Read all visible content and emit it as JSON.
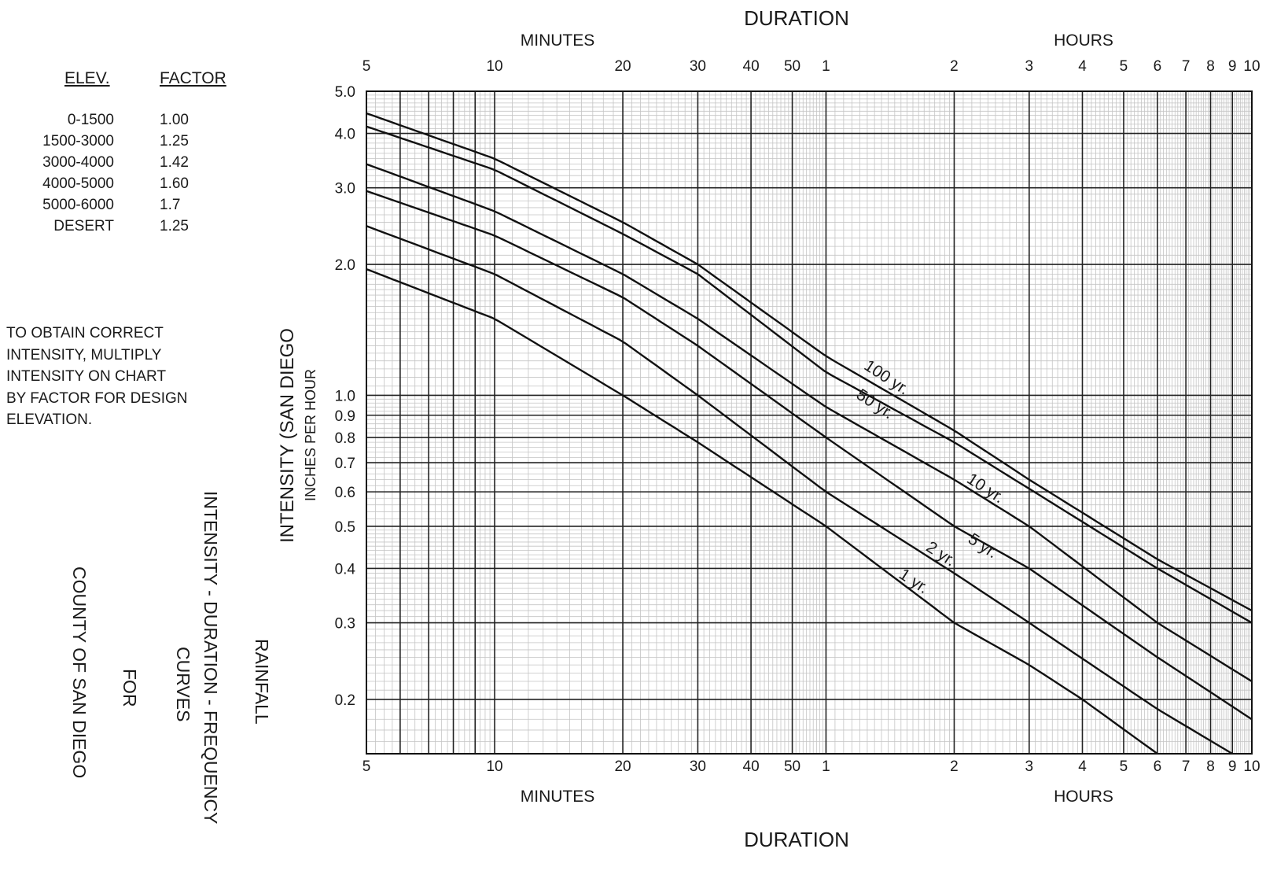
{
  "elevation_table": {
    "header_elev": "ELEV.",
    "header_factor": "FACTOR",
    "rows": [
      {
        "elev": "0-1500",
        "factor": "1.00"
      },
      {
        "elev": "1500-3000",
        "factor": "1.25"
      },
      {
        "elev": "3000-4000",
        "factor": "1.42"
      },
      {
        "elev": "4000-5000",
        "factor": "1.60"
      },
      {
        "elev": "5000-6000",
        "factor": "1.7"
      },
      {
        "elev": "DESERT",
        "factor": "1.25"
      }
    ]
  },
  "note": {
    "lines": [
      "TO OBTAIN CORRECT",
      "INTENSITY, MULTIPLY",
      "INTENSITY ON CHART",
      "BY FACTOR FOR DESIGN",
      "ELEVATION."
    ]
  },
  "side_title": {
    "lines": [
      "RAINFALL",
      "INTENSITY - DURATION - FREQUENCY",
      "CURVES",
      "FOR",
      "COUNTY OF SAN DIEGO"
    ]
  },
  "chart_data": {
    "type": "line",
    "x_scale": "log",
    "y_scale": "log",
    "x_unit": "minutes",
    "xlim": [
      5,
      600
    ],
    "ylim": [
      0.15,
      5.0
    ],
    "grid": true,
    "title_top": "DURATION",
    "title_bottom": "DURATION",
    "x_group_minutes": "MINUTES",
    "x_group_hours": "HOURS",
    "ylabel": "INTENSITY (SAN DIEGO",
    "ylabel_sub": "INCHES PER HOUR",
    "x_ticks": [
      {
        "value": 5,
        "label": "5"
      },
      {
        "value": 10,
        "label": "10"
      },
      {
        "value": 20,
        "label": "20"
      },
      {
        "value": 30,
        "label": "30"
      },
      {
        "value": 40,
        "label": "40"
      },
      {
        "value": 50,
        "label": "50"
      },
      {
        "value": 60,
        "label": "1"
      },
      {
        "value": 120,
        "label": "2"
      },
      {
        "value": 180,
        "label": "3"
      },
      {
        "value": 240,
        "label": "4"
      },
      {
        "value": 300,
        "label": "5"
      },
      {
        "value": 360,
        "label": "6"
      },
      {
        "value": 420,
        "label": "7"
      },
      {
        "value": 480,
        "label": "8"
      },
      {
        "value": 540,
        "label": "9"
      },
      {
        "value": 600,
        "label": "10"
      }
    ],
    "x_major_lines": [
      5,
      6,
      7,
      8,
      9,
      10,
      20,
      30,
      40,
      50,
      60,
      120,
      180,
      240,
      300,
      360,
      420,
      480,
      540,
      600
    ],
    "y_ticks": [
      {
        "value": 5.0,
        "label": "5.0"
      },
      {
        "value": 4.0,
        "label": "4.0"
      },
      {
        "value": 3.0,
        "label": "3.0"
      },
      {
        "value": 2.0,
        "label": "2.0"
      },
      {
        "value": 1.0,
        "label": "1.0"
      },
      {
        "value": 0.9,
        "label": "0.9"
      },
      {
        "value": 0.8,
        "label": "0.8"
      },
      {
        "value": 0.7,
        "label": "0.7"
      },
      {
        "value": 0.6,
        "label": "0.6"
      },
      {
        "value": 0.5,
        "label": "0.5"
      },
      {
        "value": 0.4,
        "label": "0.4"
      },
      {
        "value": 0.3,
        "label": "0.3"
      },
      {
        "value": 0.2,
        "label": "0.2"
      }
    ],
    "series": [
      {
        "name": "100 yr.",
        "x": [
          5,
          10,
          20,
          30,
          60,
          120,
          180,
          360,
          600
        ],
        "y": [
          4.45,
          3.5,
          2.5,
          2.0,
          1.23,
          0.83,
          0.64,
          0.42,
          0.32
        ]
      },
      {
        "name": "50 yr.",
        "x": [
          5,
          10,
          20,
          30,
          60,
          120,
          180,
          360,
          600
        ],
        "y": [
          4.15,
          3.3,
          2.35,
          1.9,
          1.13,
          0.78,
          0.61,
          0.4,
          0.3
        ]
      },
      {
        "name": "10 yr.",
        "x": [
          5,
          10,
          20,
          30,
          60,
          120,
          180,
          360,
          600
        ],
        "y": [
          3.4,
          2.65,
          1.9,
          1.5,
          0.94,
          0.64,
          0.5,
          0.3,
          0.22
        ]
      },
      {
        "name": "5 yr.",
        "x": [
          5,
          10,
          20,
          30,
          60,
          120,
          180,
          360,
          600
        ],
        "y": [
          2.95,
          2.33,
          1.68,
          1.3,
          0.8,
          0.5,
          0.4,
          0.25,
          0.18
        ]
      },
      {
        "name": "2 yr.",
        "x": [
          5,
          10,
          20,
          30,
          60,
          120,
          180,
          360,
          540
        ],
        "y": [
          2.45,
          1.9,
          1.33,
          1.0,
          0.6,
          0.39,
          0.3,
          0.19,
          0.15
        ]
      },
      {
        "name": "1 yr.",
        "x": [
          5,
          10,
          20,
          30,
          60,
          120,
          180,
          240,
          360
        ],
        "y": [
          1.95,
          1.5,
          1.0,
          0.78,
          0.5,
          0.3,
          0.24,
          0.2,
          0.15
        ]
      }
    ]
  }
}
